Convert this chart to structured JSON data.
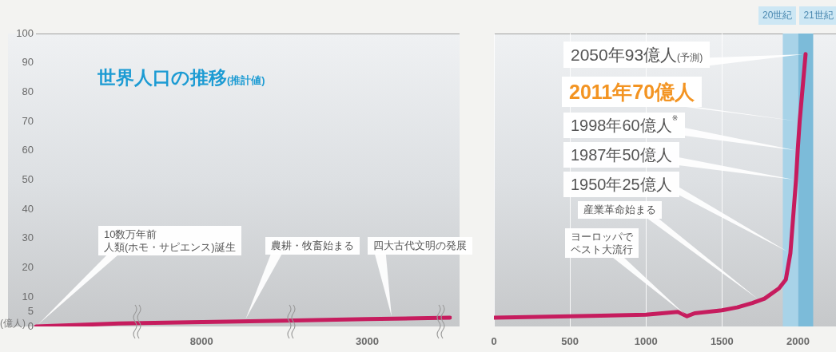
{
  "chart_data": [
    {
      "type": "line",
      "title": "世界人口の推移(推計値)",
      "ylabel": "(億人)",
      "categories": [
        null,
        null,
        "8000",
        null,
        "3000",
        null
      ],
      "values": [
        0,
        1,
        1.5,
        2,
        2.5,
        3
      ],
      "color": "#c61c5e",
      "ylim": [
        0,
        100
      ],
      "yticks": [
        0,
        5,
        10,
        20,
        30,
        40,
        50,
        60,
        70,
        80,
        90,
        100
      ],
      "annotations": [
        "10数万年前人類(ホモ・サピエンス)誕生",
        "農耕・牧畜始まる",
        "四大古代文明の発展"
      ]
    },
    {
      "type": "line",
      "x": [
        0,
        500,
        1000,
        1210,
        1270,
        1320,
        1500,
        1600,
        1700,
        1780,
        1875,
        1920,
        1950,
        1987,
        1998,
        2011,
        2050
      ],
      "values": [
        3,
        3.5,
        4,
        5,
        3.5,
        4.5,
        5.5,
        6.5,
        8,
        9.5,
        13,
        16,
        25,
        50,
        60,
        70,
        93
      ],
      "color": "#c61c5e",
      "xlim": [
        0,
        2250
      ],
      "xticks": [
        0,
        500,
        1000,
        1500,
        2000
      ],
      "ylim": [
        0,
        100
      ],
      "yticks": [
        0,
        5,
        10,
        20,
        30,
        40,
        50,
        60,
        70,
        80,
        90,
        100
      ],
      "tick_labels": "x",
      "grid": "x",
      "bands": [
        {
          "axis": "x",
          "from": 1900,
          "to": 2000,
          "label": "20世紀",
          "color": "#a8d3e8"
        },
        {
          "axis": "x",
          "from": 2000,
          "to": 2100,
          "label": "21世紀",
          "color": "#7cbbd9"
        }
      ],
      "annotations": [
        {
          "text": "2050年93億人(予測)",
          "x": 2050,
          "y": 93
        },
        {
          "text": "2011年70億人",
          "x": 2011,
          "y": 70
        },
        {
          "text": "1998年60億人$^{※}$",
          "x": 1998,
          "y": 60
        },
        {
          "text": "1987年50億人",
          "x": 1987,
          "y": 50
        },
        "1950年25億人",
        "産業革命始まる",
        "ヨーロッパでペスト大流行"
      ]
    }
  ]
}
